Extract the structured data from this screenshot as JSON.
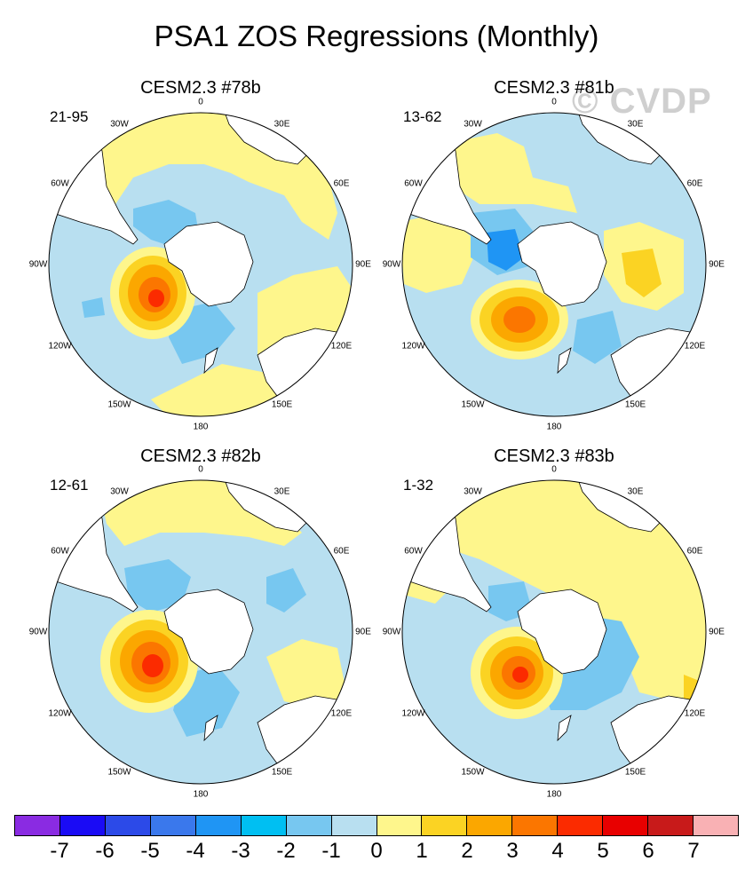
{
  "title": "PSA1 ZOS Regressions (Monthly)",
  "watermark": "© CVDP",
  "panels": [
    {
      "title": "CESM2.3 #78b",
      "period": "21-95"
    },
    {
      "title": "CESM2.3 #81b",
      "period": "13-62"
    },
    {
      "title": "CESM2.3 #82b",
      "period": "12-61"
    },
    {
      "title": "CESM2.3 #83b",
      "period": "1-32"
    }
  ],
  "longitude_labels": [
    "0",
    "30E",
    "60E",
    "90E",
    "120E",
    "150E",
    "180",
    "150W",
    "120W",
    "90W",
    "60W",
    "30W"
  ],
  "colorbar": {
    "colors": [
      "#8a2be2",
      "#1a0bf5",
      "#2c4ae8",
      "#3a78ec",
      "#1f95f4",
      "#00bff2",
      "#77c7f0",
      "#b8dff0",
      "#fef68c",
      "#fbd323",
      "#fba700",
      "#fb7600",
      "#fb2b00",
      "#e80000",
      "#c81a1a",
      "#f9b1b4"
    ],
    "ticks": [
      "-7",
      "-6",
      "-5",
      "-4",
      "-3",
      "-2",
      "-1",
      "0",
      "1",
      "2",
      "3",
      "4",
      "5",
      "6",
      "7"
    ]
  },
  "colors": {
    "ocean_base": "#b8dff0",
    "land": "#ffffff",
    "outline": "#000000",
    "watermark": "#cfcfcf"
  }
}
